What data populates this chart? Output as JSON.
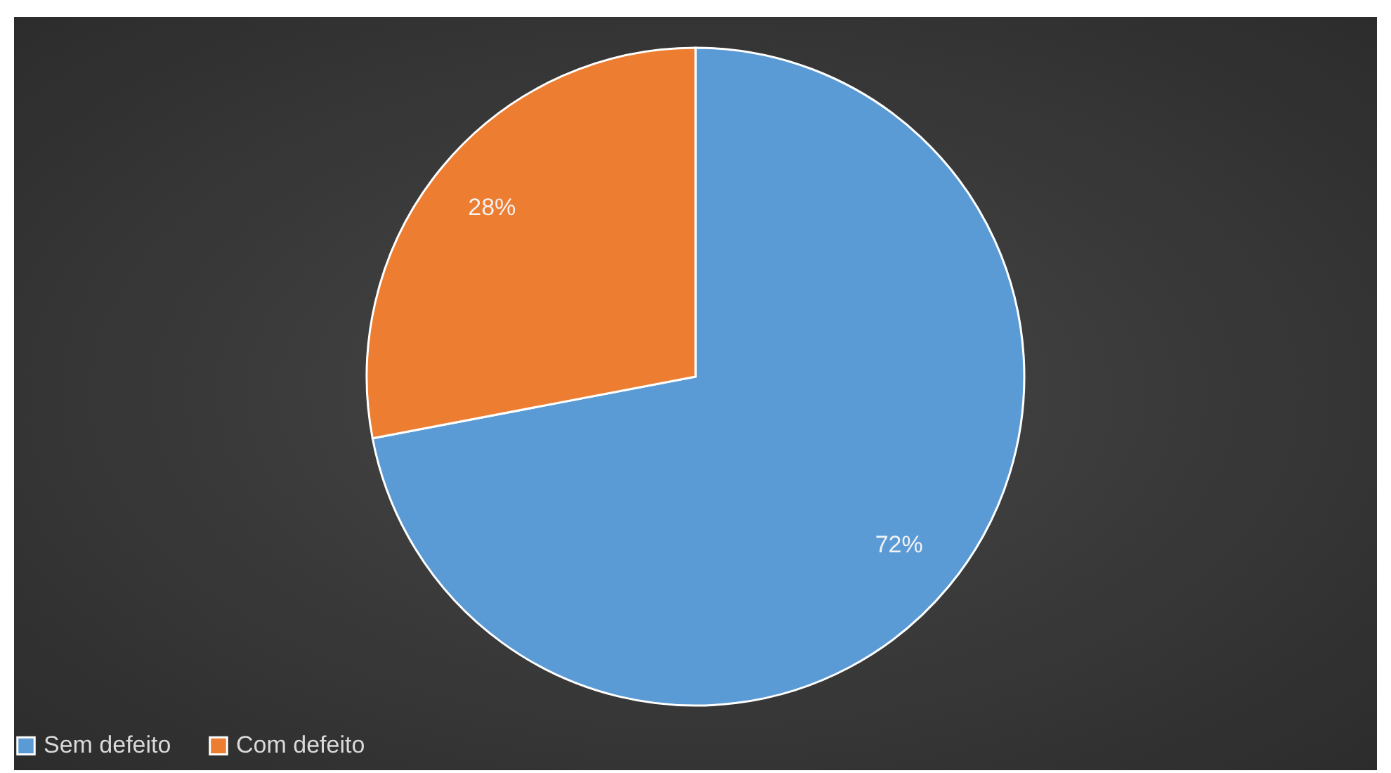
{
  "chart_data": {
    "type": "pie",
    "categories": [
      "Sem defeito",
      "Com defeito"
    ],
    "values": [
      72,
      28
    ],
    "colors": [
      "#5b9bd5",
      "#ed7d31"
    ],
    "value_labels": [
      "72%",
      "28%"
    ],
    "legend": "bottom"
  }
}
